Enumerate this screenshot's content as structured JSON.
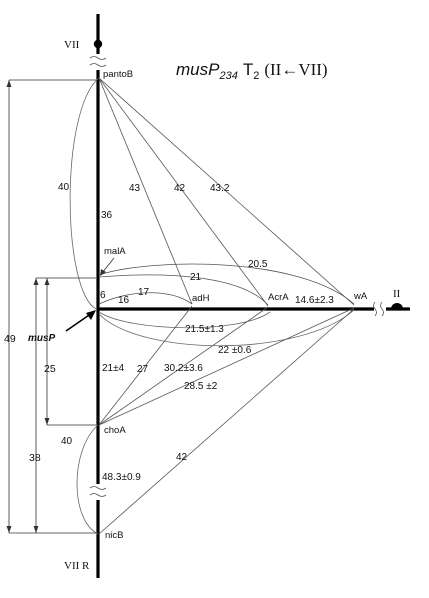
{
  "title": {
    "name": "musP",
    "subscript": "234",
    "t": "T",
    "t_sub": "2",
    "direction": "(II←VII)"
  },
  "chromosomes": {
    "top": "VII",
    "bottom": "VII R",
    "right": "II"
  },
  "pointer_label": "musP",
  "genes": {
    "pantoB": "pantoB",
    "malA": "malA",
    "adH": "adH",
    "AcrA": "AcrA",
    "wA": "wA",
    "choA": "choA",
    "nicB": "nicB"
  },
  "distances": {
    "pantoB_musP_loop": "40",
    "pantoB_musP_axis": "36",
    "pantoB_adH": "43",
    "pantoB_AcrA": "42",
    "pantoB_wA": "43.2",
    "malA_wA": "20.5",
    "malA_AcrA": "21",
    "malA_musP": "6",
    "musP_adH_upper": "17",
    "musP_adH": "16",
    "AcrA_wA": "14.6±2.3",
    "musP_AcrA_lower": "21.5±1.3",
    "musP_wA_lower": "22 ±0.6",
    "musP_choA": "21±4",
    "choA_adH": "27",
    "choA_AcrA": "30.2±3.6",
    "choA_wA": "28.5 ±2",
    "choA_nicB_loop": "40",
    "choA_nicB_axis": "48.3±0.9",
    "nicB_wA": "42"
  },
  "rulers": {
    "pantoB_nicB": "49",
    "malA_nicB": "38",
    "malA_choA": "25"
  }
}
